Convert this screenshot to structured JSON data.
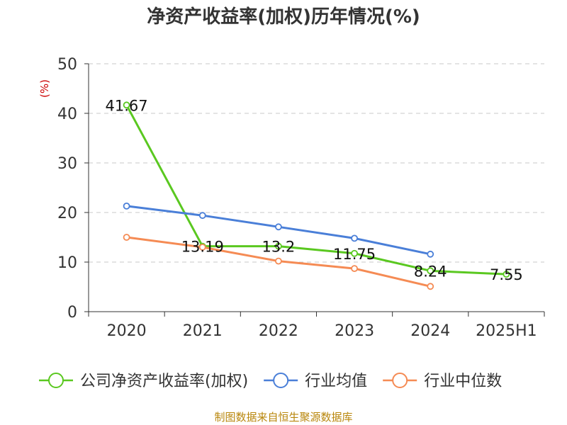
{
  "chart_data": {
    "type": "line",
    "title": "净资产收益率(加权)历年情况(%)",
    "ylabel": "(%)",
    "xlabel": "",
    "categories": [
      "2020",
      "2021",
      "2022",
      "2023",
      "2024",
      "2025H1"
    ],
    "ylim": [
      0,
      50
    ],
    "yticks": [
      0,
      10,
      20,
      30,
      40,
      50
    ],
    "grid": true,
    "legend_position": "bottom",
    "series": [
      {
        "name": "公司净资产收益率(加权)",
        "color": "#5ac820",
        "values": [
          41.67,
          13.19,
          13.2,
          11.75,
          8.24,
          7.55
        ],
        "labels": [
          "41.67",
          "13.19",
          "13.2",
          "11.75",
          "8.24",
          "7.55"
        ]
      },
      {
        "name": "行业均值",
        "color": "#4a7fd8",
        "values": [
          21.3,
          19.4,
          17.1,
          14.8,
          11.6,
          null
        ]
      },
      {
        "name": "行业中位数",
        "color": "#f58b54",
        "values": [
          15.0,
          13.0,
          10.2,
          8.7,
          5.1,
          null
        ]
      }
    ]
  },
  "source": "制图数据来自恒生聚源数据库"
}
